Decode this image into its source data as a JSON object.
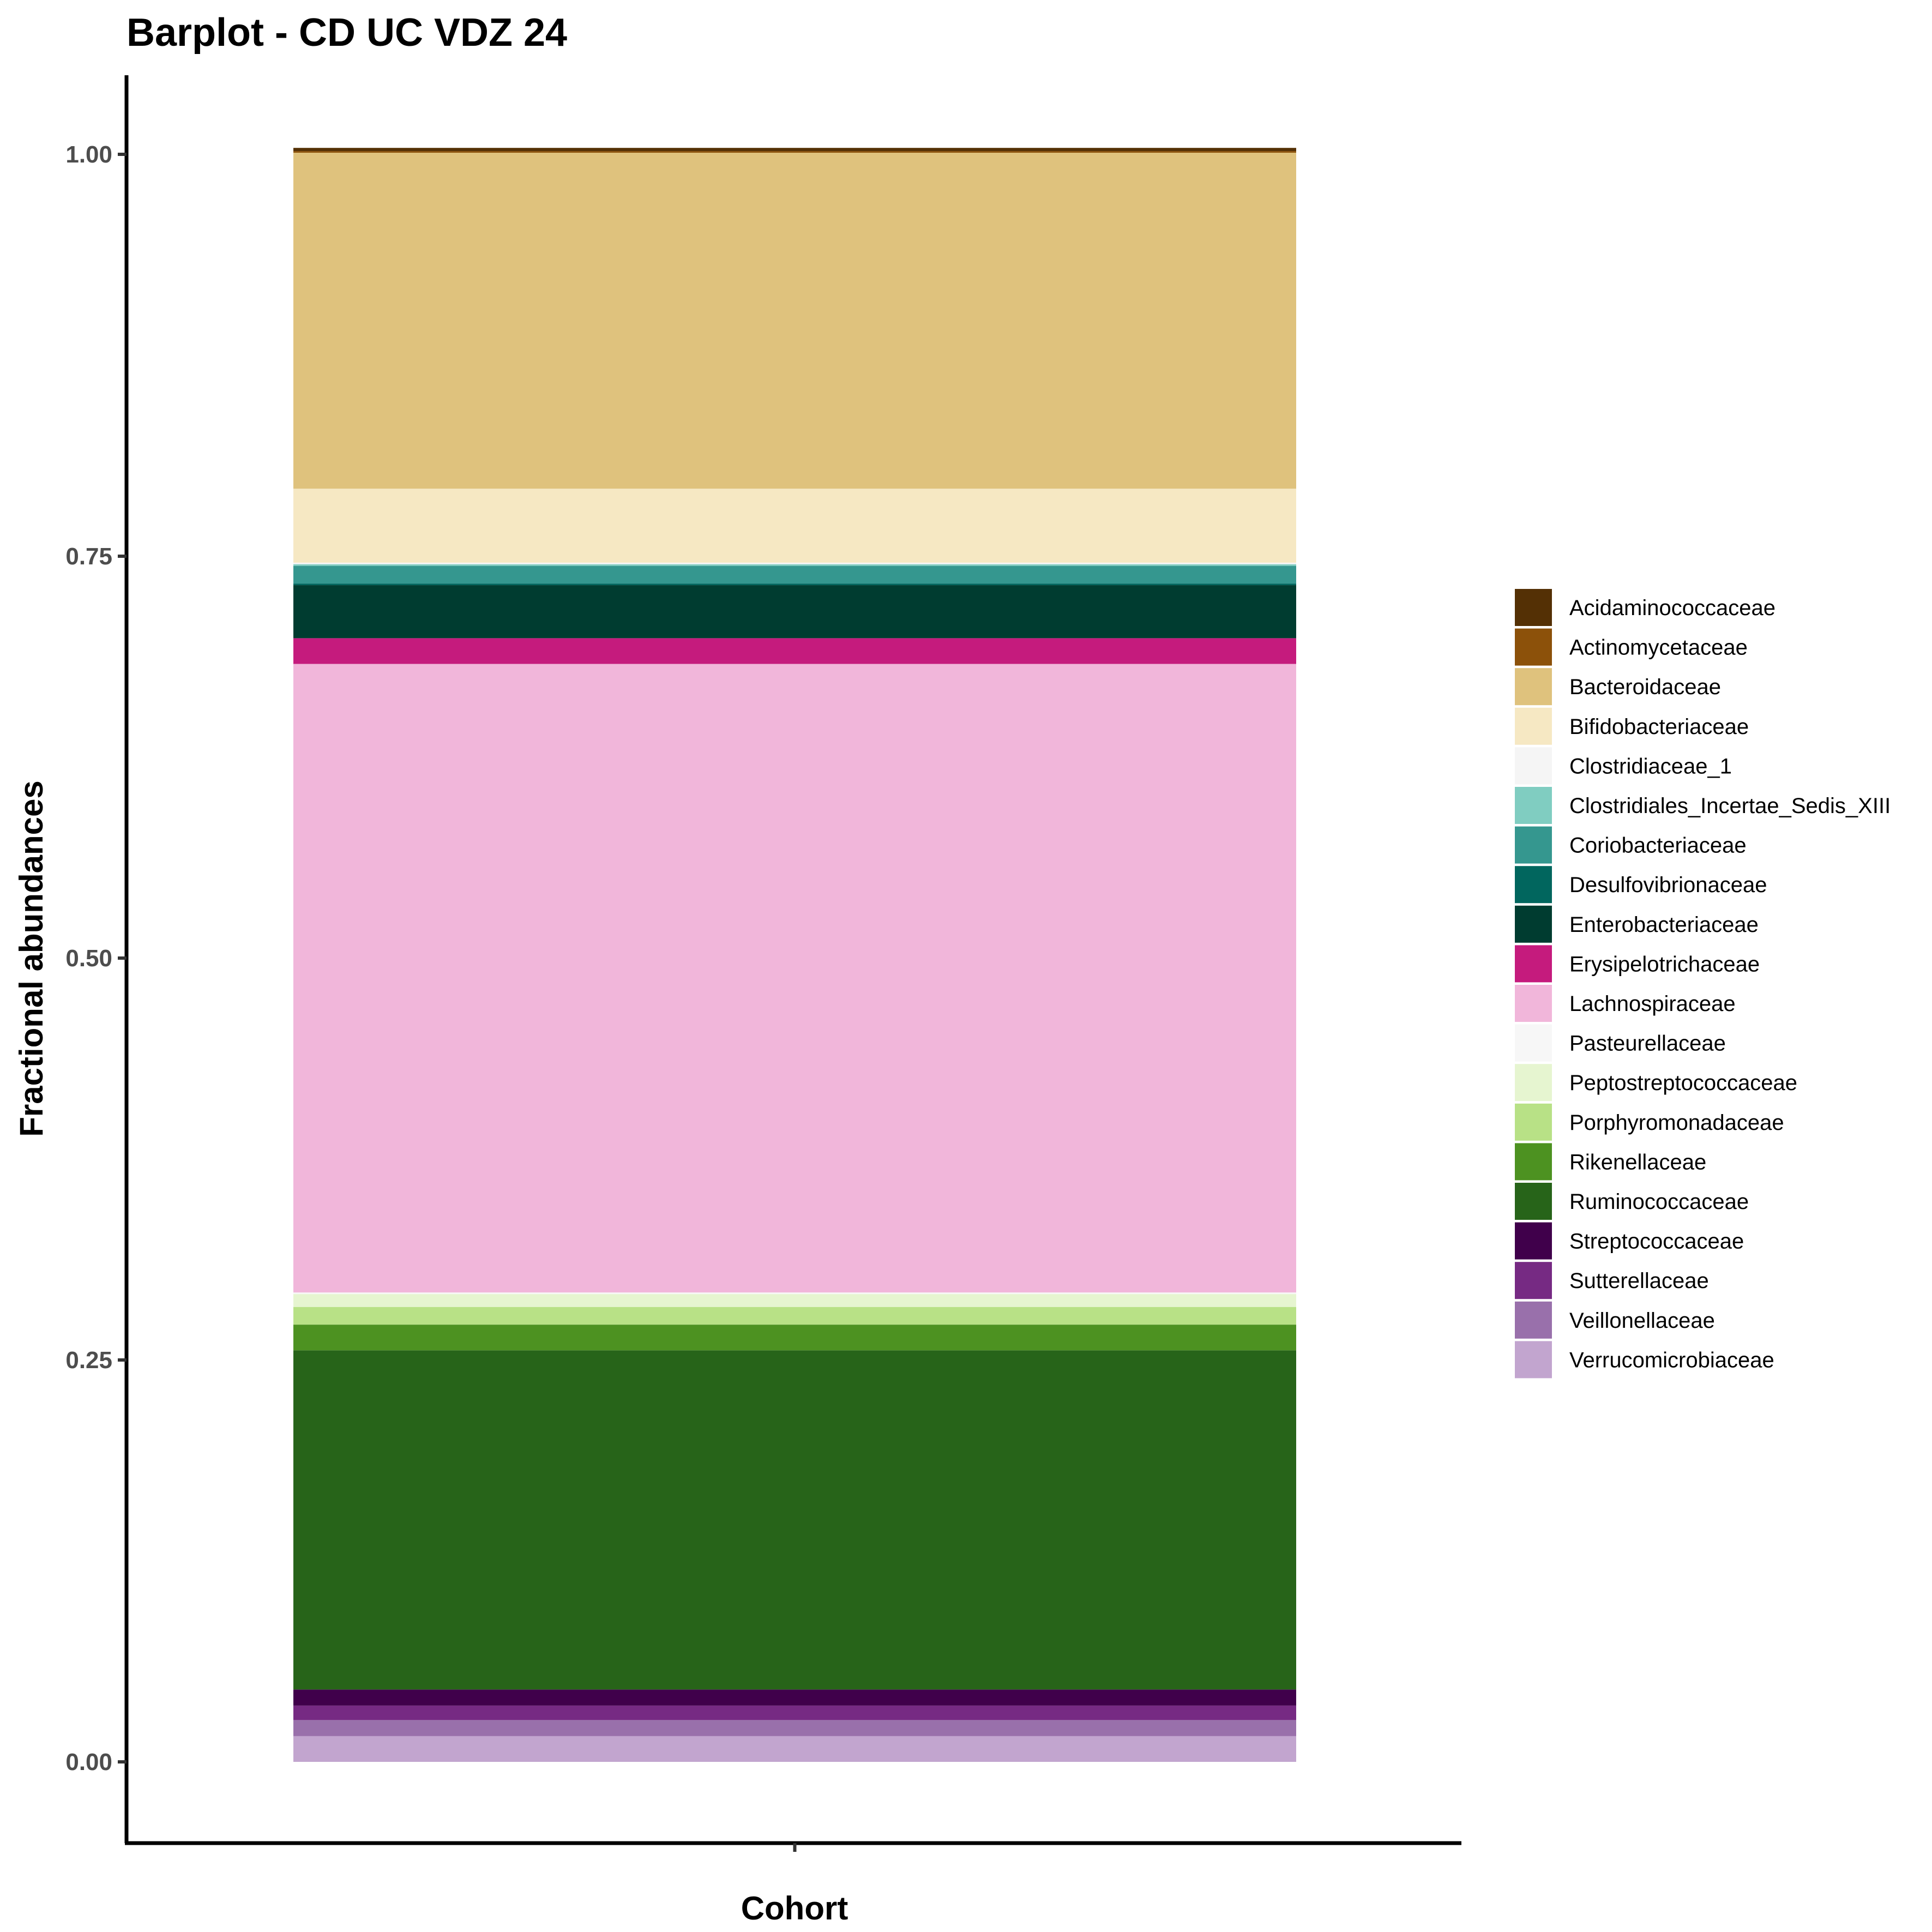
{
  "chart_data": {
    "type": "bar",
    "stacked": true,
    "title": "Barplot - CD UC VDZ 24",
    "xlabel": "Cohort",
    "ylabel": "Fractional abundances",
    "categories": [
      ""
    ],
    "ylim": [
      -0.05,
      1.05
    ],
    "yticks": [
      "0.00",
      "0.25",
      "0.50",
      "0.75",
      "1.00"
    ],
    "ytick_values": [
      0,
      0.25,
      0.5,
      0.75,
      1.0
    ],
    "grid": false,
    "legend_position": "right",
    "series": [
      {
        "name": "Verrucomicrobiaceae",
        "color": "#C2A5CF",
        "values": [
          0.016
        ]
      },
      {
        "name": "Veillonellaceae",
        "color": "#9970AB",
        "values": [
          0.01
        ]
      },
      {
        "name": "Sutterellaceae",
        "color": "#762A83",
        "values": [
          0.009
        ]
      },
      {
        "name": "Streptococcaceae",
        "color": "#40004B",
        "values": [
          0.01
        ]
      },
      {
        "name": "Ruminococcaceae",
        "color": "#276419",
        "values": [
          0.211
        ]
      },
      {
        "name": "Rikenellaceae",
        "color": "#4D9221",
        "values": [
          0.016
        ]
      },
      {
        "name": "Porphyromonadaceae",
        "color": "#B8E186",
        "values": [
          0.011
        ]
      },
      {
        "name": "Peptostreptococcaceae",
        "color": "#E6F5D0",
        "values": [
          0.008
        ]
      },
      {
        "name": "Pasteurellaceae",
        "color": "#F7F7F7",
        "values": [
          0.001
        ]
      },
      {
        "name": "Lachnospiraceae",
        "color": "#F1B6DA",
        "values": [
          0.391
        ]
      },
      {
        "name": "Erysipelotrichaceae",
        "color": "#C51B7D",
        "values": [
          0.016
        ]
      },
      {
        "name": "Enterobacteriaceae",
        "color": "#003C30",
        "values": [
          0.033
        ]
      },
      {
        "name": "Desulfovibrionaceae",
        "color": "#01665E",
        "values": [
          0.001
        ]
      },
      {
        "name": "Coriobacteriaceae",
        "color": "#35978F",
        "values": [
          0.011
        ]
      },
      {
        "name": "Clostridiales_Incertae_Sedis_XIII",
        "color": "#80CDC1",
        "values": [
          0.001
        ]
      },
      {
        "name": "Clostridiaceae_1",
        "color": "#F5F5F5",
        "values": [
          0.001
        ]
      },
      {
        "name": "Bifidobacteriaceae",
        "color": "#F6E8C3",
        "values": [
          0.046
        ]
      },
      {
        "name": "Bacteroidaceae",
        "color": "#DFC27D",
        "values": [
          0.209
        ]
      },
      {
        "name": "Actinomycetaceae",
        "color": "#8C510A",
        "values": [
          0.001
        ]
      },
      {
        "name": "Acidaminococcaceae",
        "color": "#543005",
        "values": [
          0.002
        ]
      }
    ],
    "legend": [
      {
        "label": "Acidaminococcaceae",
        "color": "#543005"
      },
      {
        "label": "Actinomycetaceae",
        "color": "#8C510A"
      },
      {
        "label": "Bacteroidaceae",
        "color": "#DFC27D"
      },
      {
        "label": "Bifidobacteriaceae",
        "color": "#F6E8C3"
      },
      {
        "label": "Clostridiaceae_1",
        "color": "#F5F5F5"
      },
      {
        "label": "Clostridiales_Incertae_Sedis_XIII",
        "color": "#80CDC1"
      },
      {
        "label": "Coriobacteriaceae",
        "color": "#35978F"
      },
      {
        "label": "Desulfovibrionaceae",
        "color": "#01665E"
      },
      {
        "label": "Enterobacteriaceae",
        "color": "#003C30"
      },
      {
        "label": "Erysipelotrichaceae",
        "color": "#C51B7D"
      },
      {
        "label": "Lachnospiraceae",
        "color": "#F1B6DA"
      },
      {
        "label": "Pasteurellaceae",
        "color": "#F7F7F7"
      },
      {
        "label": "Peptostreptococcaceae",
        "color": "#E6F5D0"
      },
      {
        "label": "Porphyromonadaceae",
        "color": "#B8E186"
      },
      {
        "label": "Rikenellaceae",
        "color": "#4D9221"
      },
      {
        "label": "Ruminococcaceae",
        "color": "#276419"
      },
      {
        "label": "Streptococcaceae",
        "color": "#40004B"
      },
      {
        "label": "Sutterellaceae",
        "color": "#762A83"
      },
      {
        "label": "Veillonellaceae",
        "color": "#9970AB"
      },
      {
        "label": "Verrucomicrobiaceae",
        "color": "#C2A5CF"
      }
    ]
  }
}
